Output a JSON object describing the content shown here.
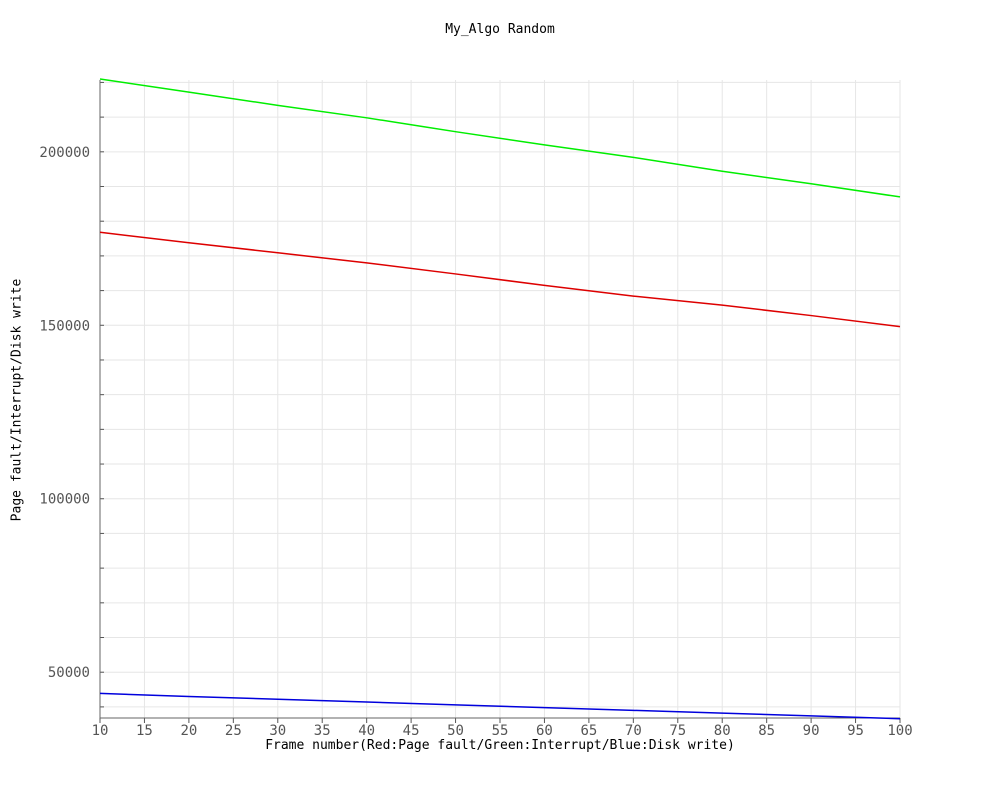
{
  "chart_data": {
    "type": "line",
    "title": "My_Algo Random",
    "xlabel": "Frame number(Red:Page fault/Green:Interrupt/Blue:Disk write)",
    "ylabel": "Page fault/Interrupt/Disk write",
    "xlim": [
      10,
      100
    ],
    "ylim": [
      36800,
      220700
    ],
    "grid": true,
    "x_ticks": [
      10,
      15,
      20,
      25,
      30,
      35,
      40,
      45,
      50,
      55,
      60,
      65,
      70,
      75,
      80,
      85,
      90,
      95,
      100
    ],
    "y_ticks": [
      50000,
      100000,
      150000,
      200000
    ],
    "x": [
      10,
      20,
      30,
      40,
      50,
      60,
      70,
      80,
      90,
      100
    ],
    "series": [
      {
        "color": "#dd0000",
        "values": [
          176800,
          173800,
          170900,
          168000,
          164800,
          161500,
          158400,
          155800,
          152800,
          149600
        ]
      },
      {
        "color": "#00ee00",
        "values": [
          221000,
          217200,
          213400,
          209800,
          205800,
          202000,
          198400,
          194400,
          190800,
          187000
        ]
      },
      {
        "color": "#0000dd",
        "values": [
          43900,
          43000,
          42200,
          41400,
          40600,
          39800,
          39000,
          38200,
          37400,
          36600
        ]
      }
    ]
  }
}
